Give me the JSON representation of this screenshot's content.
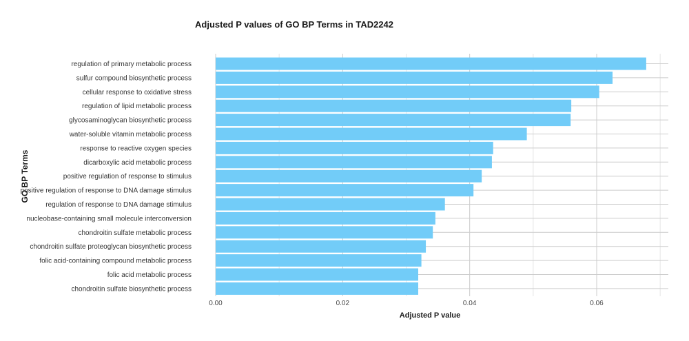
{
  "chart_data": {
    "type": "bar",
    "orientation": "horizontal",
    "title": "Adjusted P values of GO BP Terms in TAD2242",
    "xlabel": "Adjusted P value",
    "ylabel": "GO BP Terms",
    "xlim": [
      0,
      0.071
    ],
    "xticks": [
      0.0,
      0.02,
      0.04,
      0.06
    ],
    "xtick_labels": [
      "0.00",
      "0.02",
      "0.04",
      "0.06"
    ],
    "grid": true,
    "bar_color": "#72CCF8",
    "categories": [
      "regulation of primary metabolic process",
      "sulfur compound biosynthetic process",
      "cellular response to oxidative stress",
      "regulation of lipid metabolic process",
      "glycosaminoglycan biosynthetic process",
      "water-soluble vitamin metabolic process",
      "response to reactive oxygen species",
      "dicarboxylic acid metabolic process",
      "positive regulation of response to stimulus",
      "positive regulation of response to DNA damage stimulus",
      "regulation of response to DNA damage stimulus",
      "nucleobase-containing small molecule interconversion",
      "chondroitin sulfate metabolic process",
      "chondroitin sulfate proteoglycan biosynthetic process",
      "folic acid-containing compound metabolic process",
      "folic acid metabolic process",
      "chondroitin sulfate biosynthetic process"
    ],
    "values": [
      0.0678,
      0.0625,
      0.0604,
      0.056,
      0.0559,
      0.049,
      0.0437,
      0.0435,
      0.0419,
      0.0406,
      0.0361,
      0.0346,
      0.0342,
      0.0331,
      0.0324,
      0.0319,
      0.0319
    ]
  }
}
